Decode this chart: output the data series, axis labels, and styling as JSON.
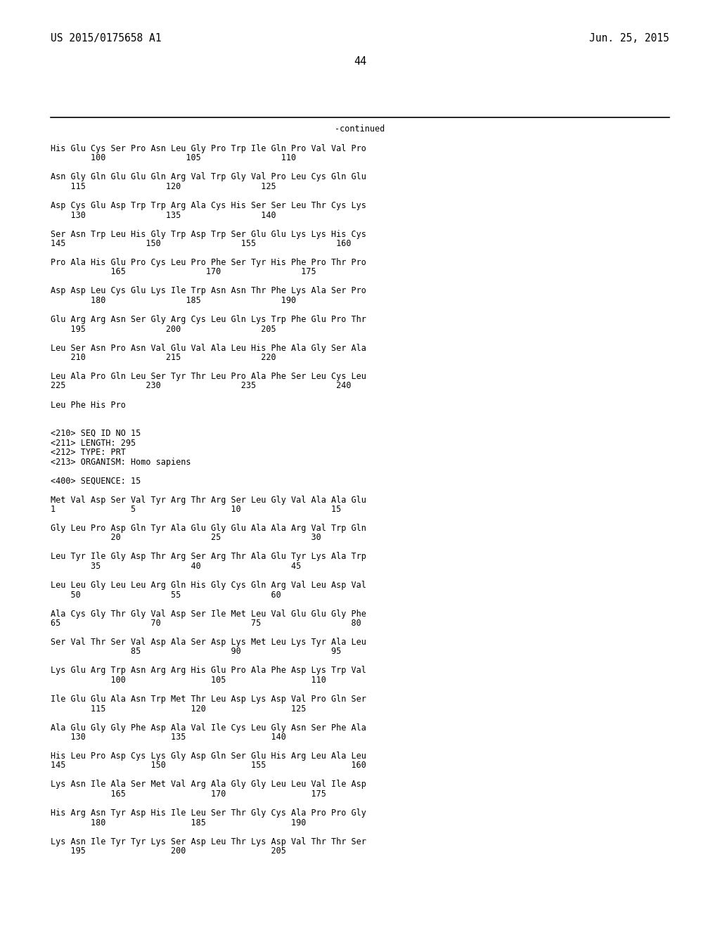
{
  "background_color": "#ffffff",
  "header_left": "US 2015/0175658 A1",
  "header_right": "Jun. 25, 2015",
  "page_number": "44",
  "continued_label": "-continued",
  "text_color": "#000000",
  "header_font_size": 10.5,
  "page_font_size": 11,
  "content_font_size": 8.5,
  "content_lines": [
    "His Glu Cys Ser Pro Asn Leu Gly Pro Trp Ile Gln Pro Val Val Pro",
    "        100                105                110",
    "",
    "Asn Gly Gln Glu Glu Gln Arg Val Trp Gly Val Pro Leu Cys Gln Glu",
    "    115                120                125",
    "",
    "Asp Cys Glu Asp Trp Trp Arg Ala Cys His Ser Ser Leu Thr Cys Lys",
    "    130                135                140",
    "",
    "Ser Asn Trp Leu His Gly Trp Asp Trp Ser Glu Glu Lys Lys His Cys",
    "145                150                155                160",
    "",
    "Pro Ala His Glu Pro Cys Leu Pro Phe Ser Tyr His Phe Pro Thr Pro",
    "            165                170                175",
    "",
    "Asp Asp Leu Cys Glu Lys Ile Trp Asn Asn Thr Phe Lys Ala Ser Pro",
    "        180                185                190",
    "",
    "Glu Arg Arg Asn Ser Gly Arg Cys Leu Gln Lys Trp Phe Glu Pro Thr",
    "    195                200                205",
    "",
    "Leu Ser Asn Pro Asn Val Glu Val Ala Leu His Phe Ala Gly Ser Ala",
    "    210                215                220",
    "",
    "Leu Ala Pro Gln Leu Ser Tyr Thr Leu Pro Ala Phe Ser Leu Cys Leu",
    "225                230                235                240",
    "",
    "Leu Phe His Pro",
    "",
    "",
    "<210> SEQ ID NO 15",
    "<211> LENGTH: 295",
    "<212> TYPE: PRT",
    "<213> ORGANISM: Homo sapiens",
    "",
    "<400> SEQUENCE: 15",
    "",
    "Met Val Asp Ser Val Tyr Arg Thr Arg Ser Leu Gly Val Ala Ala Glu",
    "1               5                   10                  15",
    "",
    "Gly Leu Pro Asp Gln Tyr Ala Glu Gly Glu Ala Ala Arg Val Trp Gln",
    "            20                  25                  30",
    "",
    "Leu Tyr Ile Gly Asp Thr Arg Ser Arg Thr Ala Glu Tyr Lys Ala Trp",
    "        35                  40                  45",
    "",
    "Leu Leu Gly Leu Leu Arg Gln His Gly Cys Gln Arg Val Leu Asp Val",
    "    50                  55                  60",
    "",
    "Ala Cys Gly Thr Gly Val Asp Ser Ile Met Leu Val Glu Glu Gly Phe",
    "65                  70                  75                  80",
    "",
    "Ser Val Thr Ser Val Asp Ala Ser Asp Lys Met Leu Lys Tyr Ala Leu",
    "                85                  90                  95",
    "",
    "Lys Glu Arg Trp Asn Arg Arg His Glu Pro Ala Phe Asp Lys Trp Val",
    "            100                 105                 110",
    "",
    "Ile Glu Glu Ala Asn Trp Met Thr Leu Asp Lys Asp Val Pro Gln Ser",
    "        115                 120                 125",
    "",
    "Ala Glu Gly Gly Phe Asp Ala Val Ile Cys Leu Gly Asn Ser Phe Ala",
    "    130                 135                 140",
    "",
    "His Leu Pro Asp Cys Lys Gly Asp Gln Ser Glu His Arg Leu Ala Leu",
    "145                 150                 155                 160",
    "",
    "Lys Asn Ile Ala Ser Met Val Arg Ala Gly Gly Leu Leu Val Ile Asp",
    "            165                 170                 175",
    "",
    "His Arg Asn Tyr Asp His Ile Leu Ser Thr Gly Cys Ala Pro Pro Gly",
    "        180                 185                 190",
    "",
    "Lys Asn Ile Tyr Tyr Lys Ser Asp Leu Thr Lys Asp Val Thr Thr Ser",
    "    195                 200                 205"
  ]
}
